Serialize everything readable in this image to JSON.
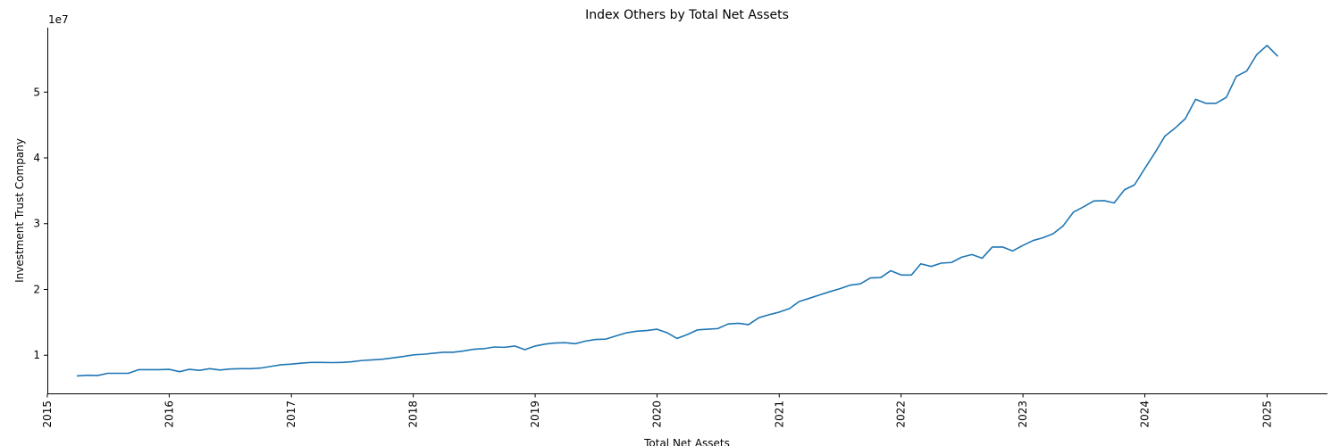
{
  "chart_data": {
    "type": "line",
    "title": "Index Others by Total Net Assets",
    "xlabel": "Total Net Assets",
    "ylabel": "Investment Trust Company",
    "y_offset_label": "1e7",
    "y_multiplier": 10000000,
    "xlim": [
      "2015-01-01",
      "2025-07-01"
    ],
    "ylim": [
      4200000,
      59800000
    ],
    "x_ticks": [
      "2015",
      "2016",
      "2017",
      "2018",
      "2019",
      "2020",
      "2021",
      "2022",
      "2023",
      "2024",
      "2025"
    ],
    "y_ticks": [
      1,
      2,
      3,
      4,
      5
    ],
    "grid": false,
    "legend": "none",
    "color": "#1f77b4",
    "series": [
      {
        "x": [
          "2015-04",
          "2015-05",
          "2015-06",
          "2015-07",
          "2015-08",
          "2015-09",
          "2015-10",
          "2015-11",
          "2015-12",
          "2016-01",
          "2016-02",
          "2016-03",
          "2016-04",
          "2016-05",
          "2016-06",
          "2016-07",
          "2016-08",
          "2016-09",
          "2016-10",
          "2016-11",
          "2016-12",
          "2017-01",
          "2017-02",
          "2017-03",
          "2017-04",
          "2017-05",
          "2017-06",
          "2017-07",
          "2017-08",
          "2017-09",
          "2017-10",
          "2017-11",
          "2017-12",
          "2018-01",
          "2018-02",
          "2018-03",
          "2018-04",
          "2018-05",
          "2018-06",
          "2018-07",
          "2018-08",
          "2018-09",
          "2018-10",
          "2018-11",
          "2018-12",
          "2019-01",
          "2019-02",
          "2019-03",
          "2019-04",
          "2019-05",
          "2019-06",
          "2019-07",
          "2019-08",
          "2019-09",
          "2019-10",
          "2019-11",
          "2019-12",
          "2020-01",
          "2020-02",
          "2020-03",
          "2020-04",
          "2020-05",
          "2020-06",
          "2020-07",
          "2020-08",
          "2020-09",
          "2020-10",
          "2020-11",
          "2020-12",
          "2021-01",
          "2021-02",
          "2021-03",
          "2021-04",
          "2021-05",
          "2021-06",
          "2021-07",
          "2021-08",
          "2021-09",
          "2021-10",
          "2021-11",
          "2021-12",
          "2022-01",
          "2022-02",
          "2022-03",
          "2022-04",
          "2022-05",
          "2022-06",
          "2022-07",
          "2022-08",
          "2022-09",
          "2022-10",
          "2022-11",
          "2022-12",
          "2023-01",
          "2023-02",
          "2023-03",
          "2023-04",
          "2023-05",
          "2023-06",
          "2023-07",
          "2023-08",
          "2023-09",
          "2023-10",
          "2023-11",
          "2023-12",
          "2024-01",
          "2024-02",
          "2024-03",
          "2024-04",
          "2024-05",
          "2024-06",
          "2024-07",
          "2024-08",
          "2024-09",
          "2024-10",
          "2024-11",
          "2024-12",
          "2025-01",
          "2025-02"
        ],
        "y": [
          6850000,
          6950000,
          6920000,
          7250000,
          7250000,
          7250000,
          7800000,
          7800000,
          7800000,
          7850000,
          7500000,
          7850000,
          7700000,
          7950000,
          7750000,
          7900000,
          7950000,
          7950000,
          8050000,
          8300000,
          8550000,
          8650000,
          8800000,
          8900000,
          8900000,
          8880000,
          8900000,
          9000000,
          9200000,
          9300000,
          9400000,
          9600000,
          9800000,
          10050000,
          10150000,
          10300000,
          10450000,
          10450000,
          10650000,
          10900000,
          11000000,
          11250000,
          11200000,
          11400000,
          10850000,
          11400000,
          11700000,
          11850000,
          11900000,
          11750000,
          12150000,
          12400000,
          12450000,
          12950000,
          13400000,
          13650000,
          13750000,
          13950000,
          13400000,
          12550000,
          13150000,
          13850000,
          13950000,
          14050000,
          14750000,
          14850000,
          14650000,
          15700000,
          16150000,
          16550000,
          17100000,
          18150000,
          18650000,
          19150000,
          19650000,
          20100000,
          20650000,
          20850000,
          21750000,
          21800000,
          22850000,
          22200000,
          22200000,
          23900000,
          23500000,
          24000000,
          24100000,
          24900000,
          25300000,
          24750000,
          26450000,
          26450000,
          25850000,
          26700000,
          27450000,
          27850000,
          28450000,
          29650000,
          31750000,
          32550000,
          33450000,
          33500000,
          33150000,
          35150000,
          35900000,
          38400000,
          40850000,
          43300000,
          44550000,
          45950000,
          48900000,
          48300000,
          48300000,
          49200000,
          52400000,
          53200000,
          55700000,
          57100000,
          55500000
        ]
      }
    ]
  }
}
